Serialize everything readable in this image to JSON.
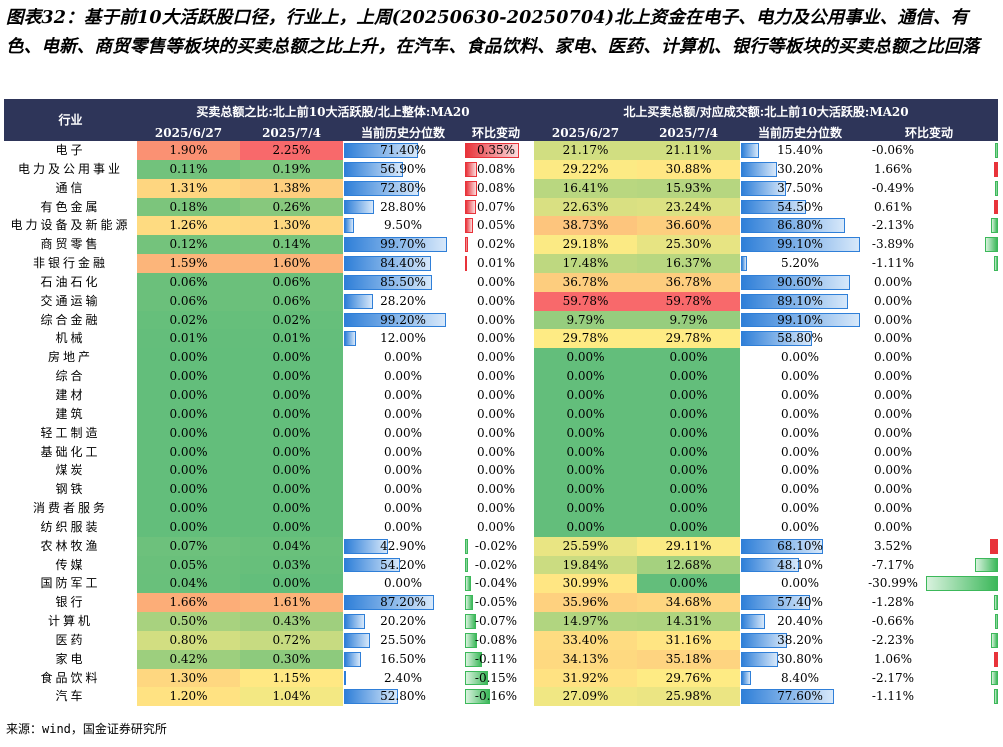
{
  "title": "图表32：基于前10大活跃股口径，行业上，上周(20250630-20250704)北上资金在电子、电力及公用事业、通信、有色、电新、商贸零售等板块的买卖总额之比上升，在汽车、食品饮料、家电、医药、计算机、银行等板块的买卖总额之比回落",
  "headers": {
    "industry": "行业",
    "group1": "买卖总额之比:北上前10大活跃股/北上整体:MA20",
    "group2": "北上买卖总额/对应成交额:北上前10大活跃股:MA20",
    "cols1": [
      "2025/6/27",
      "2025/7/4",
      "当前历史分位数",
      "环比变动"
    ],
    "cols2": [
      "2025/6/27",
      "2025/7/4",
      "当前历史分位数",
      "环比变动"
    ]
  },
  "rows": [
    {
      "name": "电子",
      "a1": "1.90%",
      "a2": "2.25%",
      "ap": "71.40%",
      "ac": "0.35%",
      "b1": "21.17%",
      "b2": "21.11%",
      "bp": "15.40%",
      "bc": "-0.06%"
    },
    {
      "name": "电力及公用事业",
      "a1": "0.11%",
      "a2": "0.19%",
      "ap": "56.90%",
      "ac": "0.08%",
      "b1": "29.22%",
      "b2": "30.88%",
      "bp": "30.20%",
      "bc": "1.66%"
    },
    {
      "name": "通信",
      "a1": "1.31%",
      "a2": "1.38%",
      "ap": "72.80%",
      "ac": "0.08%",
      "b1": "16.41%",
      "b2": "15.93%",
      "bp": "37.50%",
      "bc": "-0.49%"
    },
    {
      "name": "有色金属",
      "a1": "0.18%",
      "a2": "0.26%",
      "ap": "28.80%",
      "ac": "0.07%",
      "b1": "22.63%",
      "b2": "23.24%",
      "bp": "54.50%",
      "bc": "0.61%"
    },
    {
      "name": "电力设备及新能源",
      "a1": "1.26%",
      "a2": "1.30%",
      "ap": "9.50%",
      "ac": "0.05%",
      "b1": "38.73%",
      "b2": "36.60%",
      "bp": "86.80%",
      "bc": "-2.13%"
    },
    {
      "name": "商贸零售",
      "a1": "0.12%",
      "a2": "0.14%",
      "ap": "99.70%",
      "ac": "0.02%",
      "b1": "29.18%",
      "b2": "25.30%",
      "bp": "99.10%",
      "bc": "-3.89%"
    },
    {
      "name": "非银行金融",
      "a1": "1.59%",
      "a2": "1.60%",
      "ap": "84.40%",
      "ac": "0.01%",
      "b1": "17.48%",
      "b2": "16.37%",
      "bp": "5.20%",
      "bc": "-1.11%"
    },
    {
      "name": "石油石化",
      "a1": "0.06%",
      "a2": "0.06%",
      "ap": "85.50%",
      "ac": "0.00%",
      "b1": "36.78%",
      "b2": "36.78%",
      "bp": "90.60%",
      "bc": "0.00%"
    },
    {
      "name": "交通运输",
      "a1": "0.06%",
      "a2": "0.06%",
      "ap": "28.20%",
      "ac": "0.00%",
      "b1": "59.78%",
      "b2": "59.78%",
      "bp": "89.10%",
      "bc": "0.00%"
    },
    {
      "name": "综合金融",
      "a1": "0.02%",
      "a2": "0.02%",
      "ap": "99.20%",
      "ac": "0.00%",
      "b1": "9.79%",
      "b2": "9.79%",
      "bp": "99.10%",
      "bc": "0.00%"
    },
    {
      "name": "机械",
      "a1": "0.01%",
      "a2": "0.01%",
      "ap": "12.00%",
      "ac": "0.00%",
      "b1": "29.78%",
      "b2": "29.78%",
      "bp": "58.80%",
      "bc": "0.00%"
    },
    {
      "name": "房地产",
      "a1": "0.00%",
      "a2": "0.00%",
      "ap": "0.00%",
      "ac": "0.00%",
      "b1": "0.00%",
      "b2": "0.00%",
      "bp": "0.00%",
      "bc": "0.00%"
    },
    {
      "name": "综合",
      "a1": "0.00%",
      "a2": "0.00%",
      "ap": "0.00%",
      "ac": "0.00%",
      "b1": "0.00%",
      "b2": "0.00%",
      "bp": "0.00%",
      "bc": "0.00%"
    },
    {
      "name": "建材",
      "a1": "0.00%",
      "a2": "0.00%",
      "ap": "0.00%",
      "ac": "0.00%",
      "b1": "0.00%",
      "b2": "0.00%",
      "bp": "0.00%",
      "bc": "0.00%"
    },
    {
      "name": "建筑",
      "a1": "0.00%",
      "a2": "0.00%",
      "ap": "0.00%",
      "ac": "0.00%",
      "b1": "0.00%",
      "b2": "0.00%",
      "bp": "0.00%",
      "bc": "0.00%"
    },
    {
      "name": "轻工制造",
      "a1": "0.00%",
      "a2": "0.00%",
      "ap": "0.00%",
      "ac": "0.00%",
      "b1": "0.00%",
      "b2": "0.00%",
      "bp": "0.00%",
      "bc": "0.00%"
    },
    {
      "name": "基础化工",
      "a1": "0.00%",
      "a2": "0.00%",
      "ap": "0.00%",
      "ac": "0.00%",
      "b1": "0.00%",
      "b2": "0.00%",
      "bp": "0.00%",
      "bc": "0.00%"
    },
    {
      "name": "煤炭",
      "a1": "0.00%",
      "a2": "0.00%",
      "ap": "0.00%",
      "ac": "0.00%",
      "b1": "0.00%",
      "b2": "0.00%",
      "bp": "0.00%",
      "bc": "0.00%"
    },
    {
      "name": "钢铁",
      "a1": "0.00%",
      "a2": "0.00%",
      "ap": "0.00%",
      "ac": "0.00%",
      "b1": "0.00%",
      "b2": "0.00%",
      "bp": "0.00%",
      "bc": "0.00%"
    },
    {
      "name": "消费者服务",
      "a1": "0.00%",
      "a2": "0.00%",
      "ap": "0.00%",
      "ac": "0.00%",
      "b1": "0.00%",
      "b2": "0.00%",
      "bp": "0.00%",
      "bc": "0.00%"
    },
    {
      "name": "纺织服装",
      "a1": "0.00%",
      "a2": "0.00%",
      "ap": "0.00%",
      "ac": "0.00%",
      "b1": "0.00%",
      "b2": "0.00%",
      "bp": "0.00%",
      "bc": "0.00%"
    },
    {
      "name": "农林牧渔",
      "a1": "0.07%",
      "a2": "0.04%",
      "ap": "42.90%",
      "ac": "-0.02%",
      "b1": "25.59%",
      "b2": "29.11%",
      "bp": "68.10%",
      "bc": "3.52%"
    },
    {
      "name": "传媒",
      "a1": "0.05%",
      "a2": "0.03%",
      "ap": "54.20%",
      "ac": "-0.02%",
      "b1": "19.84%",
      "b2": "12.68%",
      "bp": "48.10%",
      "bc": "-7.17%"
    },
    {
      "name": "国防军工",
      "a1": "0.04%",
      "a2": "0.00%",
      "ap": "0.00%",
      "ac": "-0.04%",
      "b1": "30.99%",
      "b2": "0.00%",
      "bp": "0.00%",
      "bc": "-30.99%"
    },
    {
      "name": "银行",
      "a1": "1.66%",
      "a2": "1.61%",
      "ap": "87.20%",
      "ac": "-0.05%",
      "b1": "35.96%",
      "b2": "34.68%",
      "bp": "57.40%",
      "bc": "-1.28%"
    },
    {
      "name": "计算机",
      "a1": "0.50%",
      "a2": "0.43%",
      "ap": "20.20%",
      "ac": "-0.07%",
      "b1": "14.97%",
      "b2": "14.31%",
      "bp": "20.40%",
      "bc": "-0.66%"
    },
    {
      "name": "医药",
      "a1": "0.80%",
      "a2": "0.72%",
      "ap": "25.50%",
      "ac": "-0.08%",
      "b1": "33.40%",
      "b2": "31.16%",
      "bp": "38.20%",
      "bc": "-2.23%"
    },
    {
      "name": "家电",
      "a1": "0.42%",
      "a2": "0.30%",
      "ap": "16.50%",
      "ac": "-0.11%",
      "b1": "34.13%",
      "b2": "35.18%",
      "bp": "30.80%",
      "bc": "1.06%"
    },
    {
      "name": "食品饮料",
      "a1": "1.30%",
      "a2": "1.15%",
      "ap": "2.40%",
      "ac": "-0.15%",
      "b1": "31.92%",
      "b2": "29.76%",
      "bp": "8.40%",
      "bc": "-2.17%"
    },
    {
      "name": "汽车",
      "a1": "1.20%",
      "a2": "1.04%",
      "ap": "52.80%",
      "ac": "-0.16%",
      "b1": "27.09%",
      "b2": "25.98%",
      "bp": "77.60%",
      "bc": "-1.11%"
    }
  ],
  "colors": {
    "header_bg": "#2e3559",
    "pos_bar": "#e8333a",
    "neg_bar": "#3cb85a",
    "pct_bar": "#2f7fd8"
  },
  "source": "来源：wind，国金证券研究所"
}
